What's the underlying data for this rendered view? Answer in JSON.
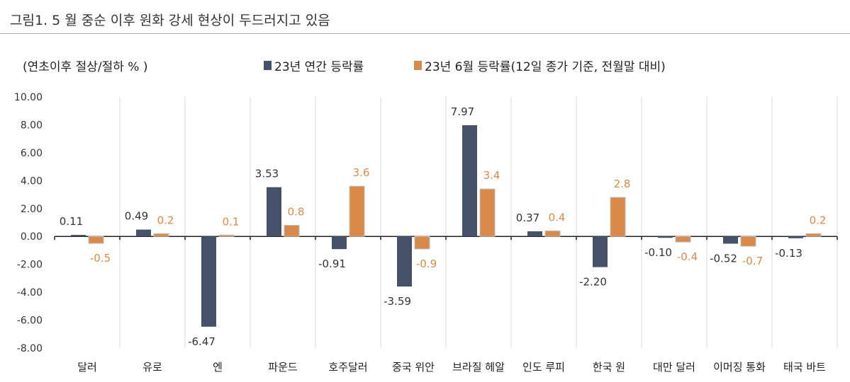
{
  "title": "그림1.   5 월 중순 이후 원화 강세 현상이 두드러지고 있음",
  "chart_data": {
    "type": "bar",
    "ylabel": "(연초이후 절상/절하 % )",
    "ylim": [
      -8,
      10
    ],
    "yticks": [
      "10.00",
      "8.00",
      "6.00",
      "4.00",
      "2.00",
      "0.00",
      "-2.00",
      "-4.00",
      "-6.00",
      "-8.00"
    ],
    "grid": "vertical category separators",
    "legend": "top",
    "categories": [
      "달러",
      "유로",
      "엔",
      "파운드",
      "호주달러",
      "중국 위안",
      "브라질 헤알",
      "인도 루피",
      "한국 원",
      "대만 달러",
      "이머징 통화",
      "태국 바트"
    ],
    "series": [
      {
        "name": "23년 연간 등락률",
        "color": "#46516a",
        "values": [
          0.11,
          0.49,
          -6.47,
          3.53,
          -0.91,
          -3.59,
          7.97,
          0.37,
          -2.2,
          -0.1,
          -0.52,
          -0.13
        ],
        "labels": [
          "0.11",
          "0.49",
          "-6.47",
          "3.53",
          "-0.91",
          "-3.59",
          "7.97",
          "0.37",
          "-2.20",
          "-0.10",
          "-0.52",
          "-0.13"
        ]
      },
      {
        "name": "23년 6월 등락률(12일 종가 기준, 전월말 대비)",
        "color": "#d9894a",
        "values": [
          -0.5,
          0.2,
          0.1,
          0.8,
          3.6,
          -0.9,
          3.4,
          0.4,
          2.8,
          -0.4,
          -0.7,
          0.2
        ],
        "labels": [
          "-0.5",
          "0.2",
          "0.1",
          "0.8",
          "3.6",
          "-0.9",
          "3.4",
          "0.4",
          "2.8",
          "-0.4",
          "-0.7",
          "0.2"
        ]
      }
    ]
  }
}
